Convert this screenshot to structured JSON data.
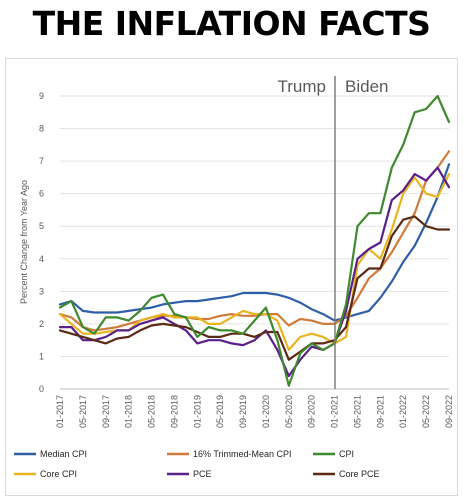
{
  "headline": "THE INFLATION FACTS",
  "chart_data": {
    "type": "line",
    "title": "THE INFLATION FACTS",
    "xlabel": "",
    "ylabel": "Percent Change from Year Ago",
    "ylim": [
      0,
      9
    ],
    "yticks": [
      0,
      1,
      2,
      3,
      4,
      5,
      6,
      7,
      8,
      9
    ],
    "grid": true,
    "legend_position": "bottom",
    "x_tick_labels": [
      "01-2017",
      "05-2017",
      "09-2017",
      "01-2018",
      "05-2018",
      "09-2018",
      "01-2019",
      "05-2019",
      "09-2019",
      "01-2020",
      "05-2020",
      "09-2020",
      "01-2021",
      "05-2021",
      "09-2021",
      "01-2022",
      "05-2022",
      "09-2022"
    ],
    "annotations": [
      {
        "text": "Trump",
        "side": "left of divider"
      },
      {
        "text": "Biden",
        "side": "right of divider"
      }
    ],
    "divider_x": "01-2021",
    "x": [
      "01-2017",
      "03-2017",
      "05-2017",
      "07-2017",
      "09-2017",
      "11-2017",
      "01-2018",
      "03-2018",
      "05-2018",
      "07-2018",
      "09-2018",
      "11-2018",
      "01-2019",
      "03-2019",
      "05-2019",
      "07-2019",
      "09-2019",
      "11-2019",
      "01-2020",
      "03-2020",
      "05-2020",
      "07-2020",
      "09-2020",
      "11-2020",
      "01-2021",
      "03-2021",
      "05-2021",
      "07-2021",
      "09-2021",
      "11-2021",
      "01-2022",
      "03-2022",
      "05-2022",
      "07-2022",
      "09-2022"
    ],
    "series": [
      {
        "name": "Median CPI",
        "color": "#2e5fa6",
        "values": [
          2.6,
          2.7,
          2.4,
          2.35,
          2.35,
          2.35,
          2.4,
          2.45,
          2.5,
          2.6,
          2.65,
          2.7,
          2.7,
          2.75,
          2.8,
          2.85,
          2.95,
          2.95,
          2.95,
          2.9,
          2.8,
          2.65,
          2.45,
          2.3,
          2.1,
          2.2,
          2.3,
          2.4,
          2.8,
          3.3,
          3.9,
          4.4,
          5.1,
          5.9,
          6.9
        ]
      },
      {
        "name": "16% Trimmed-Mean CPI",
        "color": "#d07b3b",
        "values": [
          2.3,
          2.2,
          1.9,
          1.8,
          1.85,
          1.9,
          2.0,
          2.1,
          2.2,
          2.25,
          2.25,
          2.2,
          2.15,
          2.15,
          2.25,
          2.3,
          2.25,
          2.25,
          2.3,
          2.3,
          1.95,
          2.15,
          2.1,
          2.0,
          2.0,
          2.25,
          2.8,
          3.4,
          3.7,
          4.2,
          4.8,
          5.4,
          6.4,
          6.8,
          7.3
        ]
      },
      {
        "name": "CPI",
        "color": "#3f8a2f",
        "values": [
          2.5,
          2.7,
          1.9,
          1.7,
          2.2,
          2.2,
          2.1,
          2.4,
          2.8,
          2.9,
          2.3,
          2.2,
          1.6,
          1.9,
          1.8,
          1.8,
          1.7,
          2.1,
          2.5,
          1.5,
          0.1,
          1.1,
          1.4,
          1.2,
          1.4,
          2.6,
          5.0,
          5.4,
          5.4,
          6.8,
          7.5,
          8.5,
          8.6,
          9.0,
          8.2
        ]
      },
      {
        "name": "Core CPI",
        "color": "#e8b420",
        "values": [
          2.3,
          2.0,
          1.7,
          1.7,
          1.75,
          1.8,
          1.8,
          2.1,
          2.2,
          2.3,
          2.2,
          2.2,
          2.2,
          2.0,
          2.0,
          2.2,
          2.4,
          2.3,
          2.3,
          2.1,
          1.2,
          1.6,
          1.7,
          1.6,
          1.4,
          1.6,
          3.8,
          4.3,
          4.0,
          4.9,
          6.0,
          6.5,
          6.0,
          5.9,
          6.6
        ]
      },
      {
        "name": "PCE",
        "color": "#5b1f8c",
        "values": [
          1.9,
          1.9,
          1.5,
          1.5,
          1.6,
          1.8,
          1.8,
          2.0,
          2.1,
          2.2,
          2.0,
          1.8,
          1.4,
          1.5,
          1.5,
          1.4,
          1.35,
          1.5,
          1.8,
          1.2,
          0.4,
          0.9,
          1.3,
          1.2,
          1.4,
          2.4,
          4.0,
          4.3,
          4.5,
          5.8,
          6.1,
          6.6,
          6.4,
          6.8,
          6.2
        ]
      },
      {
        "name": "Core PCE",
        "color": "#5a2a14",
        "values": [
          1.8,
          1.7,
          1.6,
          1.5,
          1.4,
          1.55,
          1.6,
          1.8,
          1.95,
          2.0,
          1.95,
          1.9,
          1.75,
          1.6,
          1.6,
          1.7,
          1.7,
          1.6,
          1.75,
          1.75,
          0.9,
          1.15,
          1.4,
          1.4,
          1.5,
          1.9,
          3.4,
          3.7,
          3.7,
          4.7,
          5.2,
          5.3,
          5.0,
          4.9,
          4.9
        ]
      }
    ]
  }
}
